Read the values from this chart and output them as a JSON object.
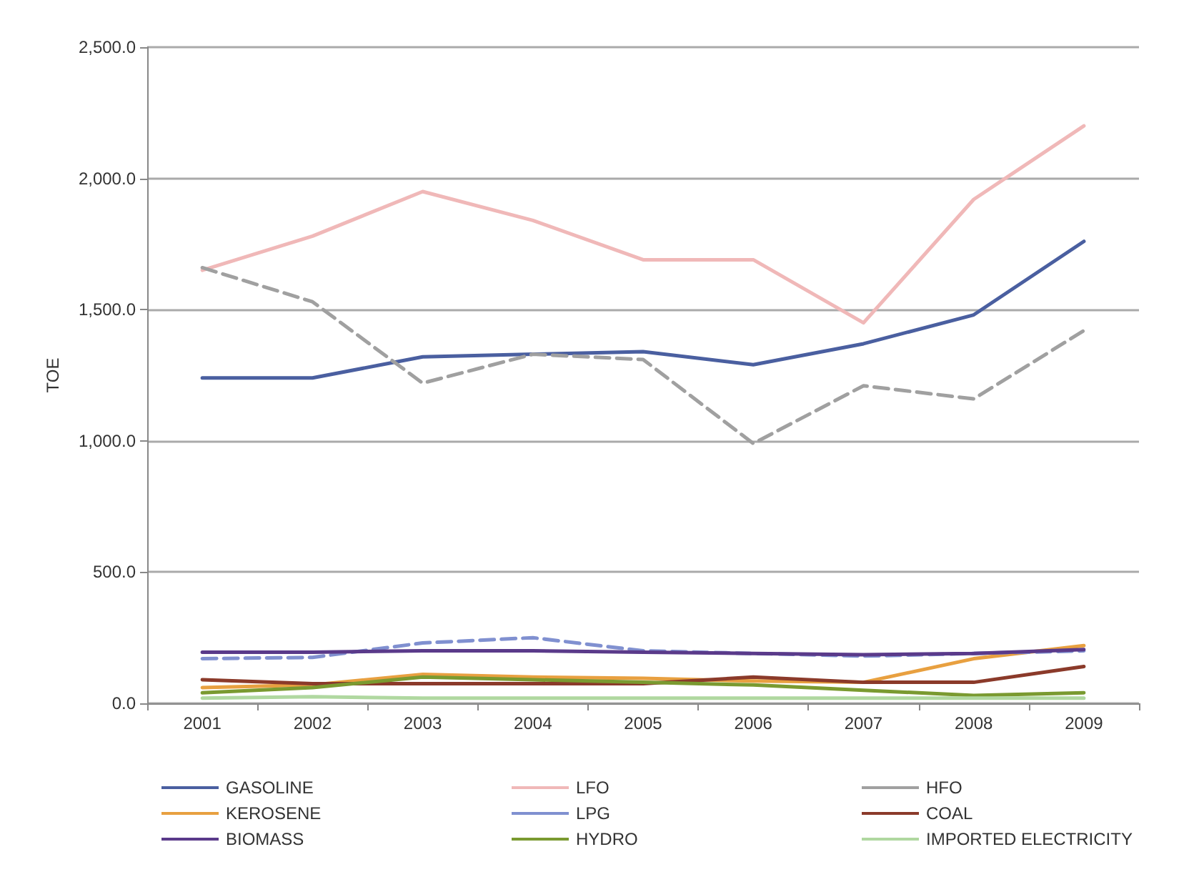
{
  "chart_data": {
    "type": "line",
    "ylabel": "TOE",
    "categories": [
      "2001",
      "2002",
      "2003",
      "2004",
      "2005",
      "2006",
      "2007",
      "2008",
      "2009"
    ],
    "ylim": [
      0,
      2500
    ],
    "yticks": [
      {
        "value": 0,
        "label": "0.0"
      },
      {
        "value": 500,
        "label": "500.0"
      },
      {
        "value": 1000,
        "label": "1,000.0"
      },
      {
        "value": 1500,
        "label": "1,500.0"
      },
      {
        "value": 2000,
        "label": "2,000.0"
      },
      {
        "value": 2500,
        "label": "2,500.0"
      }
    ],
    "grid": "y",
    "legend": "bottom",
    "marker": "none",
    "series": [
      {
        "name": "GASOLINE",
        "color": "#4a5fa0",
        "values": [
          1240,
          1240,
          1320,
          1330,
          1340,
          1290,
          1370,
          1480,
          1760
        ]
      },
      {
        "name": "LFO",
        "color": "#f0b8b8",
        "values": [
          1650,
          1780,
          1950,
          1840,
          1690,
          1690,
          1450,
          1920,
          2200
        ]
      },
      {
        "name": "HFO",
        "color": "#a0a0a0",
        "line_style": "dashed",
        "values": [
          1660,
          1530,
          1220,
          1330,
          1310,
          990,
          1210,
          1160,
          1420
        ]
      },
      {
        "name": "KEROSENE",
        "color": "#e8a040",
        "values": [
          60,
          70,
          110,
          100,
          95,
          85,
          80,
          170,
          220
        ]
      },
      {
        "name": "LPG",
        "color": "#8090d0",
        "line_style": "dashed",
        "values": [
          170,
          175,
          230,
          250,
          200,
          190,
          180,
          190,
          200
        ]
      },
      {
        "name": "COAL",
        "color": "#8b3a2a",
        "values": [
          90,
          75,
          75,
          75,
          75,
          100,
          80,
          80,
          140
        ]
      },
      {
        "name": "BIOMASS",
        "color": "#5a3a8a",
        "values": [
          195,
          195,
          200,
          200,
          195,
          190,
          185,
          190,
          205
        ]
      },
      {
        "name": "HYDRO",
        "color": "#7a9a30",
        "values": [
          40,
          60,
          100,
          90,
          80,
          70,
          50,
          30,
          40
        ]
      },
      {
        "name": "IMPORTED ELECTRICITY",
        "color": "#b0d8a0",
        "values": [
          20,
          25,
          20,
          20,
          20,
          20,
          20,
          20,
          20
        ]
      }
    ]
  }
}
